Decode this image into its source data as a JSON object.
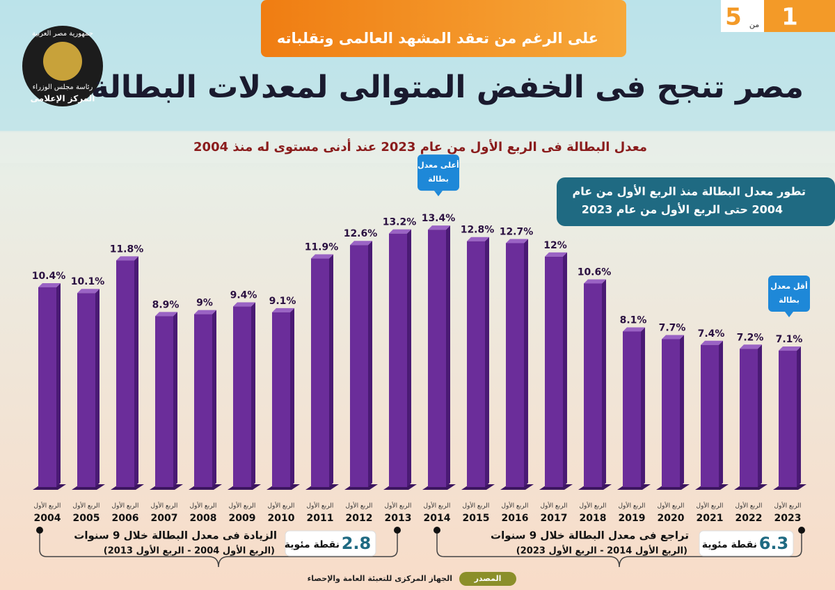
{
  "header": {
    "tagline": "على الرغم من تعقد المشهد العالمى وتقلباته",
    "title": "مصر تنجح فى الخفض المتوالى لمعدلات البطالة",
    "subtitle": "معدل البطالة فى الربع الأول من عام 2023 عند أدنى مستوى له منذ 2004",
    "page": {
      "current": "1",
      "of": "من",
      "total": "5"
    },
    "logo": [
      "جمهورية مصر العربية",
      "رئاسة مجلس الوزراء",
      "المركز الإعلامى"
    ]
  },
  "chart_data": {
    "type": "bar",
    "title": [
      "تطور معدل البطالة منذ الربع الأول من عام",
      "2004 حتى الربع الأول من عام 2023"
    ],
    "category_prefix": "الربع الأول",
    "categories": [
      "2004",
      "2005",
      "2006",
      "2007",
      "2008",
      "2009",
      "2010",
      "2011",
      "2012",
      "2013",
      "2014",
      "2015",
      "2016",
      "2017",
      "2018",
      "2019",
      "2020",
      "2021",
      "2022",
      "2023"
    ],
    "values": [
      10.4,
      10.1,
      11.8,
      8.9,
      9,
      9.4,
      9.1,
      11.9,
      12.6,
      13.2,
      13.4,
      12.8,
      12.7,
      12,
      10.6,
      8.1,
      7.7,
      7.4,
      7.2,
      7.1
    ],
    "value_labels": [
      "10.4%",
      "10.1%",
      "11.8%",
      "8.9%",
      "9%",
      "9.4%",
      "9.1%",
      "11.9%",
      "12.6%",
      "13.2%",
      "13.4%",
      "12.8%",
      "12.7%",
      "12%",
      "10.6%",
      "8.1%",
      "7.7%",
      "7.4%",
      "7.2%",
      "7.1%"
    ],
    "color": "#6b2d9a",
    "max_note": [
      "أعلى معدل",
      "بطالة"
    ],
    "min_note": [
      "أقل معدل",
      "بطالة"
    ]
  },
  "summaries": [
    {
      "title": "الزيادة فى معدل البطالة خلال 9 سنوات",
      "period": "(الربع الأول 2004 - الربع الأول 2013)",
      "value": "2.8",
      "unit": "نقطة مئوية"
    },
    {
      "title": "تراجع فى معدل البطالة خلال 9 سنوات",
      "period": "(الربع الأول 2014 - الربع الأول 2023)",
      "value": "6.3",
      "unit": "نقطة مئوية"
    }
  ],
  "source": {
    "label": "المصدر",
    "text": "الجهاز المركزى للتعبئة العامة والإحصاء"
  }
}
